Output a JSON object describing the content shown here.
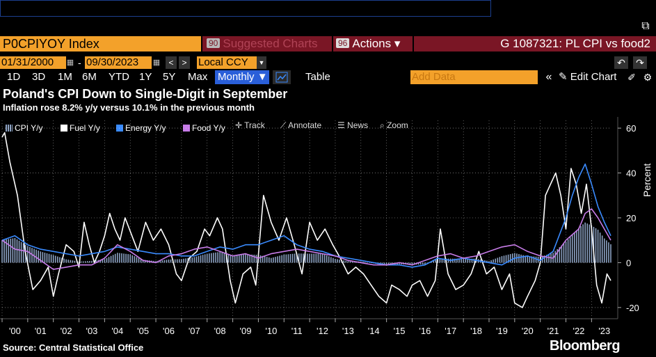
{
  "command_line": {
    "value": ""
  },
  "header": {
    "ticker": "P0CPIYOY Index",
    "suggested_num": "90",
    "suggested_label": "Suggested Charts",
    "actions_num": "96",
    "actions_label": "Actions ▾",
    "graph_title": "G 1087321: PL CPI vs food2"
  },
  "dates": {
    "start": "01/31/2000",
    "sep": "-",
    "end": "09/30/2023",
    "currency": "Local CCY"
  },
  "periods": [
    "1D",
    "3D",
    "1M",
    "6M",
    "YTD",
    "1Y",
    "5Y",
    "Max"
  ],
  "toolbar": {
    "frequency": "Monthly ▼",
    "table": "Table",
    "add_data": "Add Data",
    "edit_chart": "Edit Chart"
  },
  "titles": {
    "headline": "Poland's CPI Down to Single-Digit in September",
    "subheadline": "Inflation rose 8.2% y/y versus 10.1% in the previous month"
  },
  "chart_tools": {
    "track": "Track",
    "annotate": "Annotate",
    "news": "News",
    "zoom": "Zoom"
  },
  "legend": [
    {
      "label": "CPI Y/y",
      "color": "#8da3c4"
    },
    {
      "label": "Fuel Y/y",
      "color": "#ffffff"
    },
    {
      "label": "Energy Y/y",
      "color": "#3a8bff"
    },
    {
      "label": "Food Y/y",
      "color": "#c77ce8"
    }
  ],
  "footer": {
    "source": "Source: Central Statistical Office",
    "brand": "Bloomberg"
  },
  "chart_data": {
    "type": "line",
    "ylabel": "Percent",
    "ylim": [
      -25,
      65
    ],
    "yticks": [
      -20,
      0,
      20,
      40,
      60
    ],
    "xlim": [
      2000.0,
      2023.75
    ],
    "xtick_labels": [
      "'00",
      "'01",
      "'02",
      "'03",
      "'04",
      "'05",
      "'06",
      "'07",
      "'08",
      "'09",
      "'10",
      "'11",
      "'12",
      "'13",
      "'14",
      "'15",
      "'16",
      "'17",
      "'18",
      "'19",
      "'20",
      "'21",
      "'22",
      "'23"
    ],
    "series": [
      {
        "name": "CPI Y/y",
        "type": "bar",
        "color": "#8da3c4",
        "x": [
          2000.0,
          2000.5,
          2001.0,
          2001.5,
          2002.0,
          2002.5,
          2003.0,
          2003.5,
          2004.0,
          2004.5,
          2005.0,
          2005.5,
          2006.0,
          2006.5,
          2007.0,
          2007.5,
          2008.0,
          2008.5,
          2009.0,
          2009.5,
          2010.0,
          2010.5,
          2011.0,
          2011.5,
          2012.0,
          2012.5,
          2013.0,
          2013.5,
          2014.0,
          2014.5,
          2015.0,
          2015.5,
          2016.0,
          2016.5,
          2017.0,
          2017.5,
          2018.0,
          2018.5,
          2019.0,
          2019.5,
          2020.0,
          2020.5,
          2021.0,
          2021.5,
          2022.0,
          2022.5,
          2022.75,
          2023.0,
          2023.25,
          2023.5,
          2023.75
        ],
        "values": [
          10.1,
          11.0,
          7.4,
          5.0,
          3.4,
          1.5,
          0.5,
          0.8,
          1.6,
          4.4,
          3.7,
          1.3,
          0.7,
          1.4,
          1.6,
          2.5,
          4.0,
          4.8,
          3.3,
          3.7,
          3.5,
          2.1,
          3.6,
          4.1,
          4.0,
          4.0,
          1.7,
          0.7,
          0.5,
          -0.3,
          -1.4,
          -0.7,
          -0.9,
          -0.8,
          1.8,
          1.8,
          1.7,
          1.8,
          0.7,
          2.9,
          4.3,
          2.9,
          2.6,
          4.4,
          9.4,
          15.5,
          17.9,
          16.6,
          14.7,
          10.8,
          8.2
        ]
      },
      {
        "name": "Fuel Y/y",
        "type": "line",
        "color": "#ffffff",
        "x": [
          2000.0,
          2000.1,
          2000.3,
          2000.6,
          2000.9,
          2001.2,
          2001.5,
          2001.8,
          2002.0,
          2002.2,
          2002.5,
          2002.8,
          2003.0,
          2003.2,
          2003.4,
          2003.6,
          2003.8,
          2004.0,
          2004.2,
          2004.4,
          2004.6,
          2004.8,
          2005.0,
          2005.3,
          2005.6,
          2005.9,
          2006.2,
          2006.5,
          2006.8,
          2007.0,
          2007.3,
          2007.6,
          2007.9,
          2008.1,
          2008.4,
          2008.6,
          2008.9,
          2009.1,
          2009.4,
          2009.7,
          2009.9,
          2010.2,
          2010.5,
          2010.8,
          2011.1,
          2011.4,
          2011.7,
          2012.0,
          2012.3,
          2012.6,
          2012.9,
          2013.2,
          2013.5,
          2013.8,
          2014.1,
          2014.4,
          2014.7,
          2015.0,
          2015.2,
          2015.5,
          2015.8,
          2016.0,
          2016.3,
          2016.6,
          2016.9,
          2017.1,
          2017.4,
          2017.7,
          2018.0,
          2018.3,
          2018.6,
          2018.9,
          2019.2,
          2019.5,
          2019.8,
          2020.0,
          2020.3,
          2020.5,
          2020.8,
          2021.0,
          2021.2,
          2021.4,
          2021.6,
          2021.8,
          2022.0,
          2022.2,
          2022.4,
          2022.6,
          2022.8,
          2023.0,
          2023.2,
          2023.4,
          2023.6,
          2023.75
        ],
        "values": [
          56,
          58,
          45,
          30,
          5,
          -12,
          -8,
          -2,
          -15,
          -5,
          8,
          5,
          -2,
          18,
          8,
          0,
          5,
          12,
          22,
          15,
          10,
          20,
          14,
          5,
          18,
          10,
          15,
          8,
          -5,
          -8,
          2,
          5,
          15,
          12,
          20,
          15,
          -8,
          -18,
          -5,
          -2,
          -10,
          30,
          18,
          10,
          20,
          8,
          -5,
          18,
          10,
          15,
          8,
          2,
          -5,
          -2,
          -5,
          -10,
          -15,
          -18,
          -10,
          -12,
          -15,
          -10,
          -8,
          -15,
          -8,
          15,
          -5,
          -12,
          -10,
          -5,
          5,
          -5,
          -2,
          -12,
          -5,
          -18,
          -20,
          -15,
          -8,
          0,
          30,
          35,
          40,
          30,
          15,
          42,
          35,
          22,
          35,
          15,
          -10,
          -18,
          -5,
          -8
        ]
      },
      {
        "name": "Energy Y/y",
        "type": "line",
        "color": "#3a8bff",
        "x": [
          2000.0,
          2000.5,
          2001.0,
          2001.5,
          2002.0,
          2002.5,
          2003.0,
          2003.5,
          2004.0,
          2004.5,
          2005.0,
          2005.5,
          2006.0,
          2006.5,
          2007.0,
          2007.5,
          2008.0,
          2008.5,
          2009.0,
          2009.5,
          2010.0,
          2010.5,
          2011.0,
          2011.5,
          2012.0,
          2012.5,
          2013.0,
          2013.5,
          2014.0,
          2014.5,
          2015.0,
          2015.5,
          2016.0,
          2016.5,
          2017.0,
          2017.5,
          2018.0,
          2018.5,
          2019.0,
          2019.5,
          2020.0,
          2020.5,
          2021.0,
          2021.5,
          2022.0,
          2022.25,
          2022.5,
          2022.75,
          2023.0,
          2023.25,
          2023.5,
          2023.75
        ],
        "values": [
          10,
          12,
          8,
          6,
          5,
          4,
          3,
          4,
          5,
          7,
          6,
          5,
          4,
          4,
          3,
          3,
          5,
          7,
          6,
          8,
          8,
          10,
          12,
          8,
          6,
          5,
          3,
          2,
          1,
          0,
          -1,
          -1,
          -2,
          -1,
          2,
          1,
          2,
          1,
          0,
          -1,
          2,
          3,
          1,
          5,
          20,
          30,
          38,
          44,
          35,
          25,
          18,
          12
        ]
      },
      {
        "name": "Food Y/y",
        "type": "line",
        "color": "#c77ce8",
        "x": [
          2000.0,
          2000.5,
          2001.0,
          2001.5,
          2002.0,
          2002.5,
          2003.0,
          2003.5,
          2004.0,
          2004.5,
          2005.0,
          2005.5,
          2006.0,
          2006.5,
          2007.0,
          2007.5,
          2008.0,
          2008.5,
          2009.0,
          2009.5,
          2010.0,
          2010.5,
          2011.0,
          2011.5,
          2012.0,
          2012.5,
          2013.0,
          2013.5,
          2014.0,
          2014.5,
          2015.0,
          2015.5,
          2016.0,
          2016.5,
          2017.0,
          2017.5,
          2018.0,
          2018.5,
          2019.0,
          2019.5,
          2020.0,
          2020.5,
          2021.0,
          2021.5,
          2022.0,
          2022.5,
          2022.75,
          2023.0,
          2023.25,
          2023.5,
          2023.75
        ],
        "values": [
          10,
          6,
          5,
          1,
          -3,
          -2,
          -1,
          -1,
          2,
          8,
          5,
          1,
          0,
          3,
          4,
          6,
          7,
          5,
          3,
          4,
          2,
          4,
          5,
          6,
          5,
          4,
          3,
          1,
          0,
          -1,
          -1,
          0,
          -1,
          1,
          3,
          4,
          2,
          3,
          5,
          7,
          8,
          5,
          3,
          2,
          10,
          15,
          22,
          24,
          20,
          15,
          10
        ]
      }
    ]
  }
}
